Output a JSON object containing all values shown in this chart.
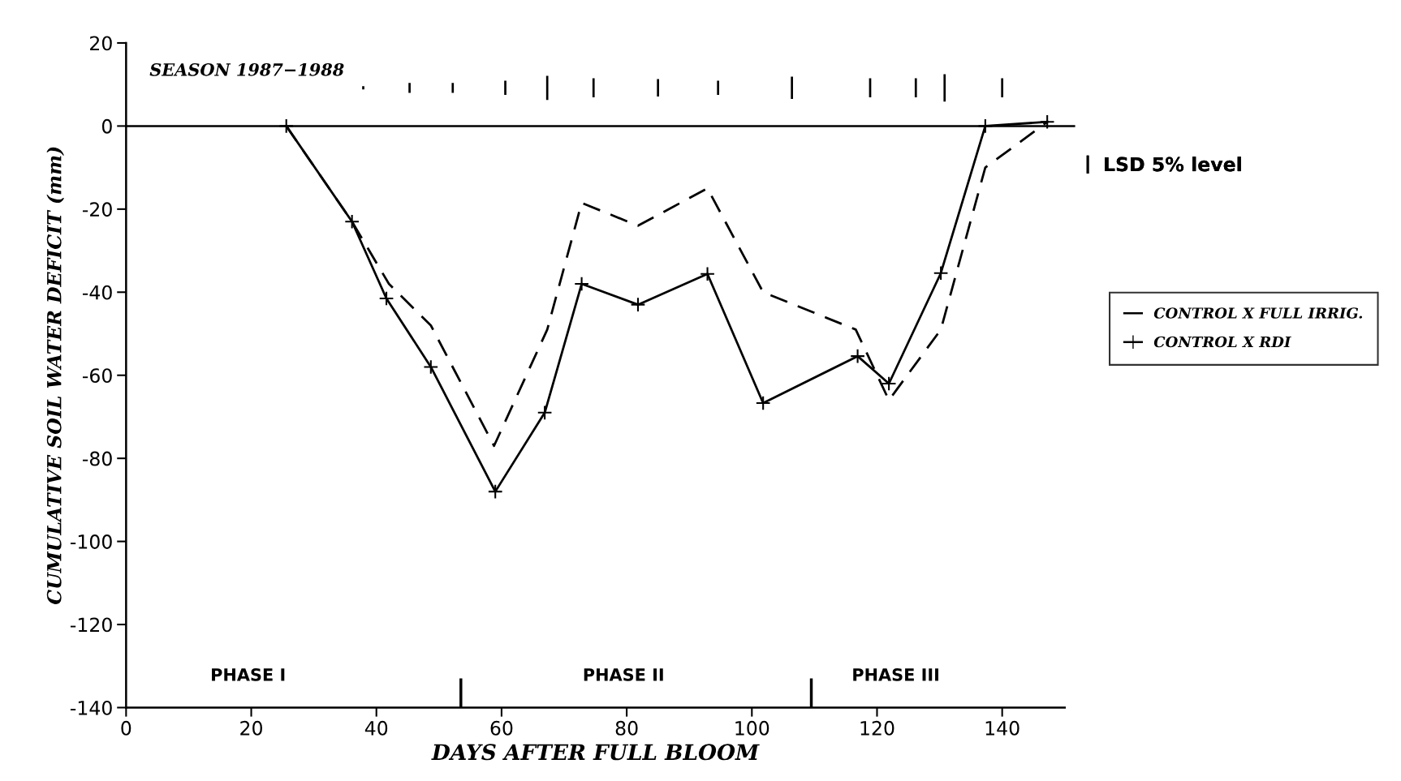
{
  "chart_data": {
    "type": "line",
    "title": "SEASON 1987−1988",
    "xlabel": "DAYS AFTER FULL BLOOM",
    "ylabel": "CUMULATIVE SOIL WATER DEFICIT (mm)",
    "xlim": [
      0,
      150
    ],
    "ylim": [
      -140,
      20
    ],
    "xticks": [
      0,
      20,
      40,
      60,
      80,
      100,
      120,
      140
    ],
    "yticks": [
      -140,
      -120,
      -100,
      -80,
      -60,
      -40,
      -20,
      0,
      20
    ],
    "grid": false,
    "legend": "right",
    "series": [
      {
        "name": "CONTROL X FULL IRRIG.",
        "color": "#000000",
        "line_style": "dashed",
        "marker": "none",
        "x": [
          25.6,
          36.1,
          42,
          48.7,
          58.8,
          67.3,
          72.8,
          81.8,
          92.9,
          101.8,
          116.6,
          121.9,
          130.2,
          137.3,
          147.2
        ],
        "values": [
          0,
          -23,
          -38,
          -48,
          -77,
          -49,
          -18.5,
          -24,
          -15,
          -40,
          -49,
          -66,
          -49,
          -10,
          1
        ]
      },
      {
        "name": "CONTROL X RDI",
        "color": "#000000",
        "line_style": "solid",
        "marker": "cross",
        "x": [
          25.6,
          36.1,
          41.6,
          48.7,
          59,
          66.9,
          72.8,
          81.8,
          92.9,
          101.8,
          116.9,
          121.9,
          130.2,
          137.3,
          147.2
        ],
        "values": [
          0,
          -23,
          -41.5,
          -58,
          -88,
          -69,
          -38,
          -43,
          -35.6,
          -66.7,
          -55.4,
          -62,
          -35.4,
          0,
          1
        ]
      },
      {
        "name": "LSD 5% level",
        "type": "bar",
        "color": "#000000",
        "x": [
          37.9,
          45.3,
          52.2,
          60.6,
          67.3,
          74.7,
          85.0,
          94.6,
          106.4,
          118.9,
          126.2,
          130.8,
          140.0
        ],
        "base": [
          8.8,
          8.0,
          8.0,
          7.5,
          6.3,
          6.9,
          7.1,
          7.5,
          6.5,
          6.9,
          6.9,
          5.9,
          6.9
        ],
        "values": [
          0.8,
          2.4,
          2.4,
          3.4,
          5.8,
          4.6,
          4.2,
          3.4,
          5.4,
          4.6,
          4.6,
          6.6,
          4.6
        ]
      },
      {
        "type": "bar",
        "color": "#000000",
        "x": [
          53.5,
          109.5
        ],
        "base": [
          -140,
          -140
        ],
        "values": [
          7,
          7
        ]
      }
    ],
    "ref_lines": [
      {
        "axis": "y",
        "value": 0,
        "label": null
      }
    ],
    "annotations": [
      "PHASE I",
      "PHASE II",
      "PHASE III"
    ]
  }
}
